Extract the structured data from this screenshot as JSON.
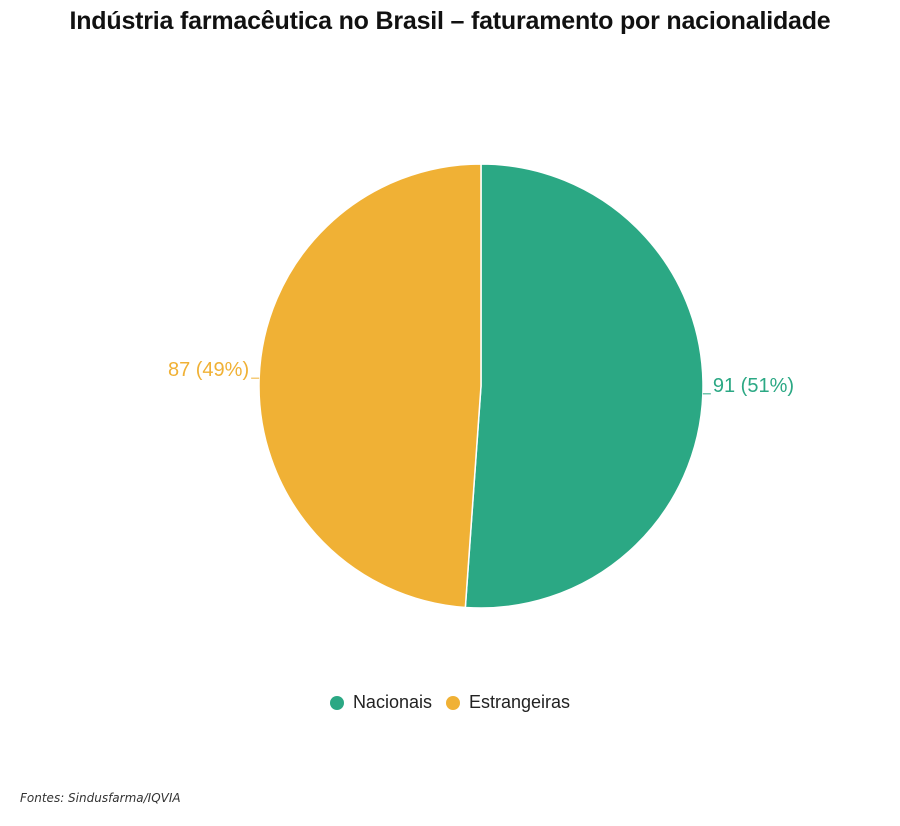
{
  "chart_data": {
    "type": "pie",
    "title": "Indústria farmacêutica no Brasil – faturamento por nacionalidade",
    "slices": [
      {
        "name": "Nacionais",
        "value": 91,
        "percent": 51,
        "label": "91 (51%)",
        "color": "#2ba884"
      },
      {
        "name": "Estrangeiras",
        "value": 87,
        "percent": 49,
        "label": "87 (49%)",
        "color": "#f0b135"
      }
    ],
    "start_angle": "top",
    "direction": "clockwise",
    "legend_position": "bottom"
  },
  "legend": {
    "items": [
      {
        "label": "Nacionais",
        "color": "#2ba884"
      },
      {
        "label": "Estrangeiras",
        "color": "#f0b135"
      }
    ]
  },
  "source": "Fontes: Sindusfarma/IQVIA"
}
